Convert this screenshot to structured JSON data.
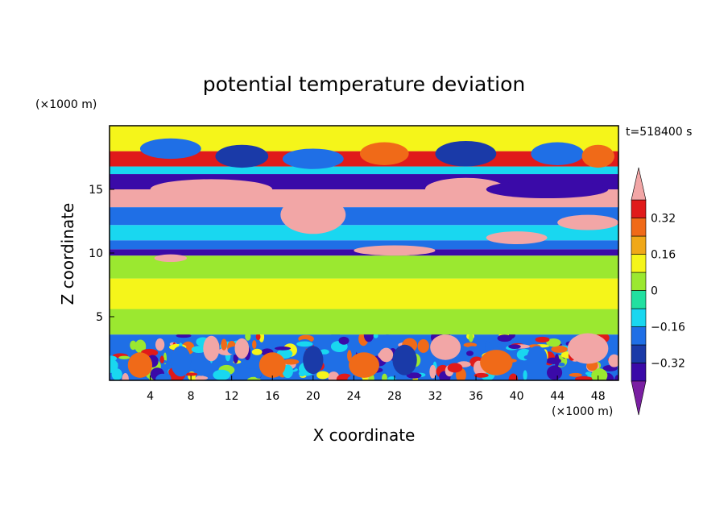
{
  "chart_data": {
    "type": "heatmap",
    "title": "potential temperature deviation",
    "time_label": "t=518400 s",
    "xlabel": "X coordinate",
    "ylabel": "Z coordinate",
    "x_unit": "(×1000 m)",
    "y_unit": "(×1000 m)",
    "xlim": [
      0,
      50
    ],
    "ylim": [
      0,
      20
    ],
    "x_ticks": [
      4,
      8,
      12,
      16,
      20,
      24,
      28,
      32,
      36,
      40,
      44,
      48
    ],
    "y_ticks": [
      5,
      10,
      15
    ],
    "colorbar": {
      "levels": [
        -0.4,
        -0.32,
        -0.24,
        -0.16,
        -0.08,
        0,
        0.08,
        0.16,
        0.24,
        0.32,
        0.4
      ],
      "labels": [
        "0.32",
        "0.16",
        "0",
        "−0.16",
        "−0.32"
      ],
      "label_values": [
        0.32,
        0.16,
        0,
        -0.16,
        -0.32
      ],
      "colors": [
        "#7a1fa2",
        "#3a0aa8",
        "#1a3aa8",
        "#1f6fe6",
        "#19d7f0",
        "#22e0a0",
        "#9be830",
        "#f5f51a",
        "#f0a818",
        "#f06a18",
        "#e01a1a",
        "#f2a6a6"
      ],
      "extend": "both"
    },
    "bands": [
      {
        "z0": 0.0,
        "z1": 3.6,
        "level": "mixed"
      },
      {
        "z0": 3.6,
        "z1": 5.6,
        "level": 0.04
      },
      {
        "z0": 5.6,
        "z1": 8.0,
        "level": 0.12
      },
      {
        "z0": 8.0,
        "z1": 9.8,
        "level": 0.04
      },
      {
        "z0": 9.8,
        "z1": 10.3,
        "level": -0.36
      },
      {
        "z0": 10.3,
        "z1": 11.0,
        "level": -0.24
      },
      {
        "z0": 11.0,
        "z1": 12.2,
        "level": -0.12
      },
      {
        "z0": 12.2,
        "z1": 13.6,
        "level": -0.24
      },
      {
        "z0": 13.6,
        "z1": 15.0,
        "level": 0.44
      },
      {
        "z0": 15.0,
        "z1": 16.2,
        "level": -0.36
      },
      {
        "z0": 16.2,
        "z1": 16.8,
        "level": -0.12
      },
      {
        "z0": 16.8,
        "z1": 18.0,
        "level": 0.32
      },
      {
        "z0": 18.0,
        "z1": 20.0,
        "level": 0.12
      }
    ],
    "blobs": [
      {
        "x": 6,
        "z": 18.2,
        "rx": 3.0,
        "rz": 0.8,
        "level": -0.24
      },
      {
        "x": 13,
        "z": 17.6,
        "rx": 2.6,
        "rz": 0.9,
        "level": -0.32
      },
      {
        "x": 20,
        "z": 17.4,
        "rx": 3.0,
        "rz": 0.8,
        "level": -0.24
      },
      {
        "x": 27,
        "z": 17.8,
        "rx": 2.4,
        "rz": 0.9,
        "level": 0.28
      },
      {
        "x": 35,
        "z": 17.8,
        "rx": 3.0,
        "rz": 1.0,
        "level": -0.32
      },
      {
        "x": 44,
        "z": 17.8,
        "rx": 2.6,
        "rz": 0.9,
        "level": -0.24
      },
      {
        "x": 48,
        "z": 17.6,
        "rx": 1.6,
        "rz": 0.9,
        "level": 0.24
      },
      {
        "x": 10,
        "z": 15.0,
        "rx": 6.0,
        "rz": 0.8,
        "level": 0.44
      },
      {
        "x": 20,
        "z": 13.0,
        "rx": 3.2,
        "rz": 1.5,
        "level": 0.44
      },
      {
        "x": 35,
        "z": 15.0,
        "rx": 4.0,
        "rz": 0.9,
        "level": 0.44
      },
      {
        "x": 43,
        "z": 15.0,
        "rx": 6.0,
        "rz": 0.7,
        "level": -0.4
      },
      {
        "x": 40,
        "z": 11.2,
        "rx": 3.0,
        "rz": 0.5,
        "level": 0.44
      },
      {
        "x": 47,
        "z": 12.4,
        "rx": 3.0,
        "rz": 0.6,
        "level": 0.44
      },
      {
        "x": 28,
        "z": 10.2,
        "rx": 4.0,
        "rz": 0.4,
        "level": 0.44
      },
      {
        "x": 6,
        "z": 9.6,
        "rx": 1.6,
        "rz": 0.3,
        "level": 0.44
      },
      {
        "x": 10,
        "z": 2.5,
        "rx": 0.8,
        "rz": 1.0,
        "level": 0.44
      },
      {
        "x": 13,
        "z": 2.5,
        "rx": 0.7,
        "rz": 0.8,
        "level": 0.44
      },
      {
        "x": 33,
        "z": 2.6,
        "rx": 1.5,
        "rz": 1.0,
        "level": 0.44
      },
      {
        "x": 47,
        "z": 2.5,
        "rx": 2.0,
        "rz": 1.2,
        "level": 0.44
      },
      {
        "x": 3,
        "z": 1.2,
        "rx": 1.2,
        "rz": 1.0,
        "level": 0.28
      },
      {
        "x": 7,
        "z": 1.5,
        "rx": 1.0,
        "rz": 1.2,
        "level": -0.24
      },
      {
        "x": 16,
        "z": 1.2,
        "rx": 1.3,
        "rz": 1.0,
        "level": 0.28
      },
      {
        "x": 20,
        "z": 1.6,
        "rx": 1.0,
        "rz": 1.1,
        "level": -0.32
      },
      {
        "x": 25,
        "z": 1.2,
        "rx": 1.5,
        "rz": 1.0,
        "level": 0.28
      },
      {
        "x": 29,
        "z": 1.6,
        "rx": 1.2,
        "rz": 1.2,
        "level": -0.32
      },
      {
        "x": 38,
        "z": 1.4,
        "rx": 1.6,
        "rz": 1.0,
        "level": 0.28
      },
      {
        "x": 42,
        "z": 1.7,
        "rx": 1.0,
        "rz": 1.0,
        "level": -0.24
      }
    ]
  }
}
